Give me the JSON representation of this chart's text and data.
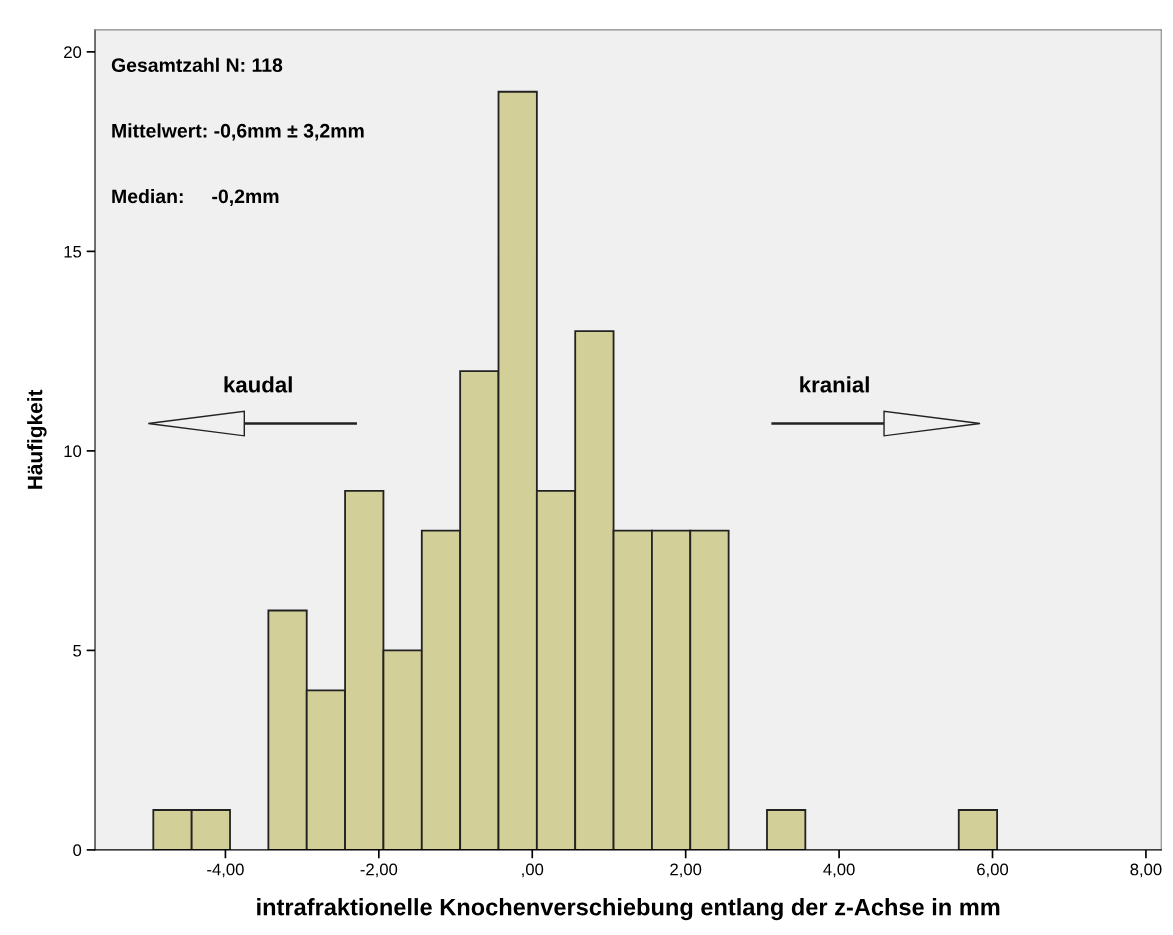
{
  "chart_data": {
    "type": "histogram",
    "xlabel": "intrafraktionelle Knochenverschiebung entlang der z-Achse in mm",
    "ylabel": "Häufigkeit",
    "bins": [
      -4.94,
      -4.44,
      -3.94,
      -3.44,
      -2.94,
      -2.44,
      -1.94,
      -1.44,
      -0.94,
      -0.44,
      0.06,
      0.56,
      1.06,
      1.56,
      2.06,
      2.56,
      3.06,
      3.56,
      4.06,
      4.56,
      5.06,
      5.56,
      6.06
    ],
    "values": [
      1,
      1,
      0,
      6,
      4,
      9,
      5,
      8,
      12,
      19,
      9,
      13,
      8,
      8,
      8,
      0,
      1,
      0,
      0,
      0,
      0,
      1
    ],
    "color": "#d3cf98",
    "xlim": [
      -5.7,
      8.2
    ],
    "xticks": [
      {
        "value": -4,
        "label": "-4,00"
      },
      {
        "value": -2,
        "label": "-2,00"
      },
      {
        "value": 0,
        "label": ",00"
      },
      {
        "value": 2,
        "label": "2,00"
      },
      {
        "value": 4,
        "label": "4,00"
      },
      {
        "value": 6,
        "label": "6,00"
      },
      {
        "value": 8,
        "label": "8,00"
      }
    ],
    "ylim": [
      0,
      20.55
    ],
    "yticks": [
      0,
      5,
      10,
      15,
      20
    ],
    "grid": false,
    "annotations": [
      "Gesamtzahl N: 118",
      "Mittelwert: -0,6mm ± 3,2mm",
      "Median:     -0,2mm",
      "kaudal",
      "kranial"
    ]
  }
}
